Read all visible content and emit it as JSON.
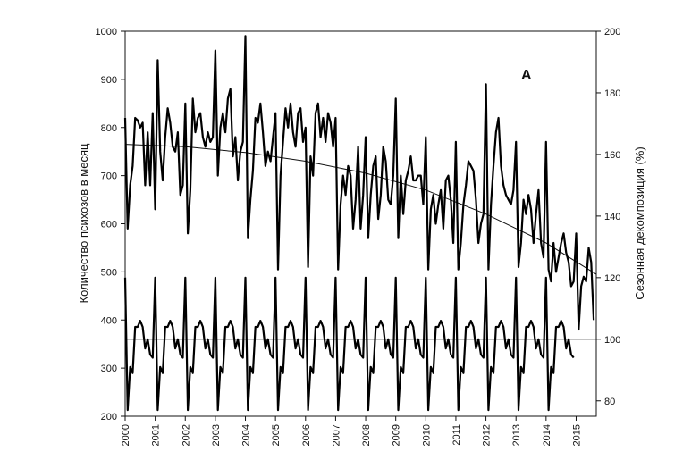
{
  "chart_data": {
    "type": "line",
    "panel_label": "A",
    "ylabel_left": "Количество психозов в месяц",
    "ylabel_right": "Сезонная декомпозиция (%)",
    "xlabel": "",
    "ylim_left": [
      200,
      1000
    ],
    "ylim_right": [
      75,
      200
    ],
    "xlim": [
      2000,
      2015.67
    ],
    "x_ticks": [
      "2000",
      "2001",
      "2002",
      "2003",
      "2004",
      "2005",
      "2006",
      "2007",
      "2008",
      "2009",
      "2010",
      "2011",
      "2012",
      "2013",
      "2014",
      "2015"
    ],
    "y_ticks_left": [
      "200",
      "300",
      "400",
      "500",
      "600",
      "700",
      "800",
      "900",
      "1000"
    ],
    "y_ticks_right": [
      "80",
      "100",
      "120",
      "140",
      "160",
      "180",
      "200"
    ],
    "reference_line_right": 100,
    "grid": false,
    "trend": {
      "name": "",
      "x": [
        2000.0,
        2002.0,
        2004.0,
        2006.0,
        2008.0,
        2010.0,
        2012.0,
        2014.0,
        2015.67
      ],
      "y": [
        765,
        760,
        748,
        730,
        705,
        670,
        620,
        560,
        495
      ]
    },
    "series": [
      {
        "name": "",
        "axis": "left",
        "start": 2000.0,
        "step": 0.0833333,
        "values": [
          820,
          590,
          680,
          720,
          820,
          815,
          800,
          810,
          680,
          790,
          680,
          830,
          630,
          940,
          750,
          690,
          780,
          840,
          810,
          760,
          750,
          790,
          660,
          680,
          850,
          580,
          670,
          860,
          790,
          820,
          830,
          780,
          760,
          790,
          770,
          780,
          960,
          700,
          800,
          830,
          790,
          860,
          880,
          740,
          780,
          690,
          750,
          770,
          990,
          570,
          650,
          710,
          820,
          810,
          850,
          790,
          720,
          750,
          730,
          780,
          830,
          505,
          700,
          770,
          840,
          800,
          850,
          790,
          760,
          830,
          840,
          770,
          800,
          510,
          740,
          700,
          830,
          850,
          780,
          820,
          770,
          830,
          810,
          760,
          820,
          505,
          640,
          700,
          660,
          720,
          700,
          590,
          650,
          760,
          590,
          660,
          780,
          570,
          660,
          720,
          740,
          610,
          660,
          760,
          730,
          650,
          640,
          700,
          860,
          570,
          700,
          620,
          690,
          710,
          740,
          690,
          690,
          700,
          700,
          640,
          780,
          505,
          630,
          660,
          600,
          640,
          670,
          590,
          690,
          700,
          650,
          560,
          770,
          505,
          560,
          640,
          680,
          730,
          720,
          710,
          650,
          560,
          600,
          620,
          890,
          505,
          640,
          720,
          790,
          820,
          720,
          680,
          660,
          650,
          640,
          670,
          770,
          510,
          560,
          650,
          620,
          660,
          630,
          560,
          620,
          670,
          560,
          530,
          770,
          505,
          480,
          560,
          500,
          530,
          560,
          580,
          540,
          520,
          470,
          480,
          580,
          380,
          470,
          490,
          480,
          550,
          520,
          400
        ]
      },
      {
        "name": "",
        "axis": "right",
        "start": 2000.0,
        "step": 0.0833333,
        "values": [
          120,
          77,
          91,
          89,
          104,
          104,
          106,
          104,
          97,
          100,
          95,
          94,
          120,
          77,
          91,
          89,
          104,
          104,
          106,
          104,
          97,
          100,
          95,
          94,
          120,
          77,
          91,
          89,
          104,
          104,
          106,
          104,
          97,
          100,
          95,
          94,
          120,
          77,
          91,
          89,
          104,
          104,
          106,
          104,
          97,
          100,
          95,
          94,
          120,
          77,
          91,
          89,
          104,
          104,
          106,
          104,
          97,
          100,
          95,
          94,
          120,
          77,
          91,
          89,
          104,
          104,
          106,
          104,
          97,
          100,
          95,
          94,
          120,
          77,
          91,
          89,
          104,
          104,
          106,
          104,
          97,
          100,
          95,
          94,
          120,
          77,
          91,
          89,
          104,
          104,
          106,
          104,
          97,
          100,
          95,
          94,
          120,
          77,
          91,
          89,
          104,
          104,
          106,
          104,
          97,
          100,
          95,
          94,
          120,
          77,
          91,
          89,
          104,
          104,
          106,
          104,
          97,
          100,
          95,
          94,
          120,
          77,
          91,
          89,
          104,
          104,
          106,
          104,
          97,
          100,
          95,
          94,
          120,
          77,
          91,
          89,
          104,
          104,
          106,
          104,
          97,
          100,
          95,
          94,
          120,
          77,
          91,
          89,
          104,
          104,
          106,
          104,
          97,
          100,
          95,
          94,
          120,
          77,
          91,
          89,
          104,
          104,
          106,
          104,
          97,
          100,
          95,
          94,
          120,
          77,
          91,
          89,
          104,
          104,
          106,
          104,
          97,
          100,
          95,
          94
        ]
      }
    ]
  }
}
